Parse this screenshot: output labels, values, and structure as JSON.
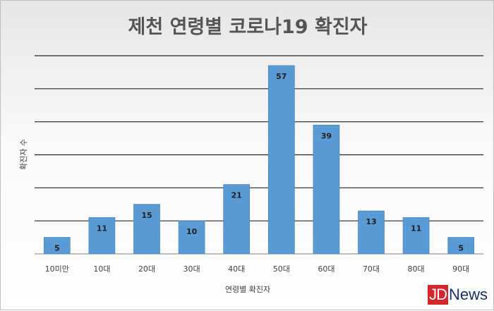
{
  "chart_data": {
    "type": "bar",
    "title": "제천 연령별 코로나19 확진자",
    "xlabel": "연령별 확진자",
    "ylabel": "확진자 수",
    "categories": [
      "10미만",
      "10대",
      "20대",
      "30대",
      "40대",
      "50대",
      "60대",
      "70대",
      "80대",
      "90대"
    ],
    "series": [
      {
        "values": [
          5,
          11,
          15,
          10,
          21,
          57,
          39,
          13,
          11,
          5
        ]
      }
    ],
    "ylim": [
      0,
      60
    ],
    "grid": true,
    "y_tick_labels_shown": false,
    "bar_color": "#5b9bd5"
  },
  "watermark": {
    "logo_text": "JDNews"
  }
}
